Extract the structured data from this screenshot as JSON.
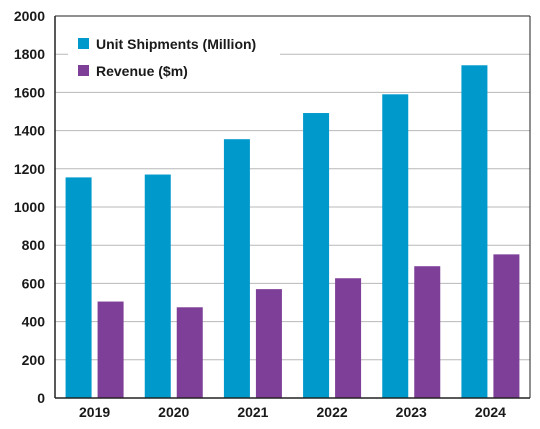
{
  "chart_data": {
    "type": "bar",
    "categories": [
      "2019",
      "2020",
      "2021",
      "2022",
      "2023",
      "2024"
    ],
    "series": [
      {
        "name": "Unit Shipments (Million)",
        "color": "#0099cc",
        "values": [
          1155,
          1170,
          1355,
          1492,
          1590,
          1742
        ]
      },
      {
        "name": "Revenue ($m)",
        "color": "#7e3f98",
        "values": [
          505,
          475,
          570,
          627,
          690,
          752
        ]
      }
    ],
    "ylim": [
      0,
      2000
    ],
    "yticks": [
      "0",
      "200",
      "400",
      "600",
      "800",
      "1000",
      "1200",
      "1400",
      "1600",
      "1800",
      "2000"
    ],
    "grid": true,
    "legend_position": "top-left",
    "title": "",
    "xlabel": "",
    "ylabel": ""
  }
}
